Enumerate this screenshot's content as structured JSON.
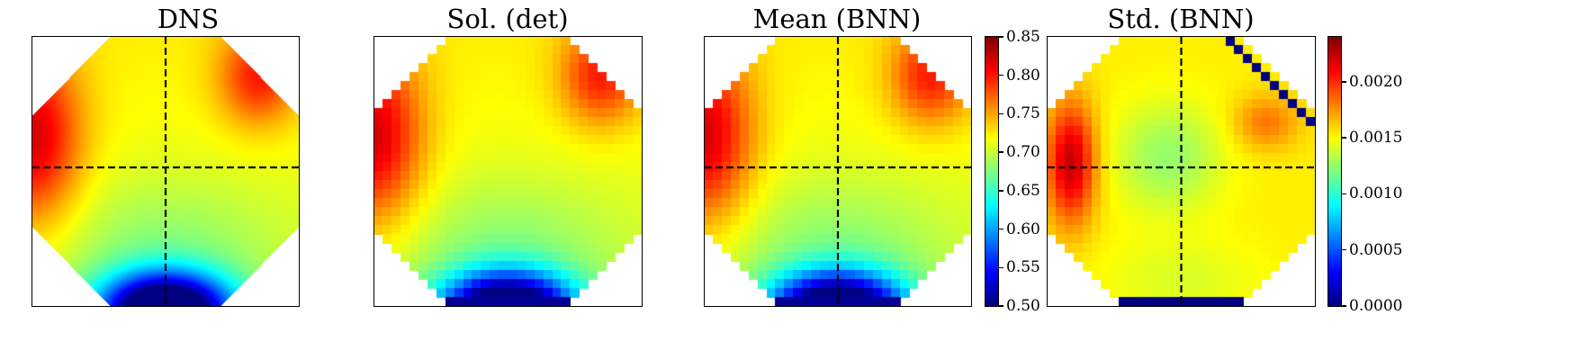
{
  "chart_data": [
    {
      "type": "heatmap",
      "title": "DNS",
      "style": "smooth",
      "field": "base",
      "colormap": "jet",
      "vmin": 0.5,
      "vmax": 0.85,
      "crosshair": true,
      "colorbar": null
    },
    {
      "type": "heatmap",
      "title": "Sol. (det)",
      "style": "pixelated",
      "field": "base",
      "colormap": "jet",
      "vmin": 0.5,
      "vmax": 0.85,
      "crosshair": false,
      "colorbar": null
    },
    {
      "type": "heatmap",
      "title": "Mean (BNN)",
      "style": "pixelated",
      "field": "base",
      "colormap": "jet",
      "vmin": 0.5,
      "vmax": 0.85,
      "crosshair": true,
      "colorbar": {
        "ticks": [
          0.5,
          0.55,
          0.6,
          0.65,
          0.7,
          0.75,
          0.8,
          0.85
        ],
        "tick_labels": [
          "0.50",
          "0.55",
          "0.60",
          "0.65",
          "0.70",
          "0.75",
          "0.80",
          "0.85"
        ]
      }
    },
    {
      "type": "heatmap",
      "title": "Std. (BNN)",
      "style": "pixelated",
      "field": "std",
      "colormap": "jet",
      "vmin": 0.0,
      "vmax": 0.0024,
      "crosshair": true,
      "colorbar": {
        "ticks": [
          0.0,
          0.0005,
          0.001,
          0.0015,
          0.002
        ],
        "tick_labels": [
          "0.0000",
          "0.0005",
          "0.0010",
          "0.0015",
          "0.0020"
        ]
      }
    }
  ]
}
